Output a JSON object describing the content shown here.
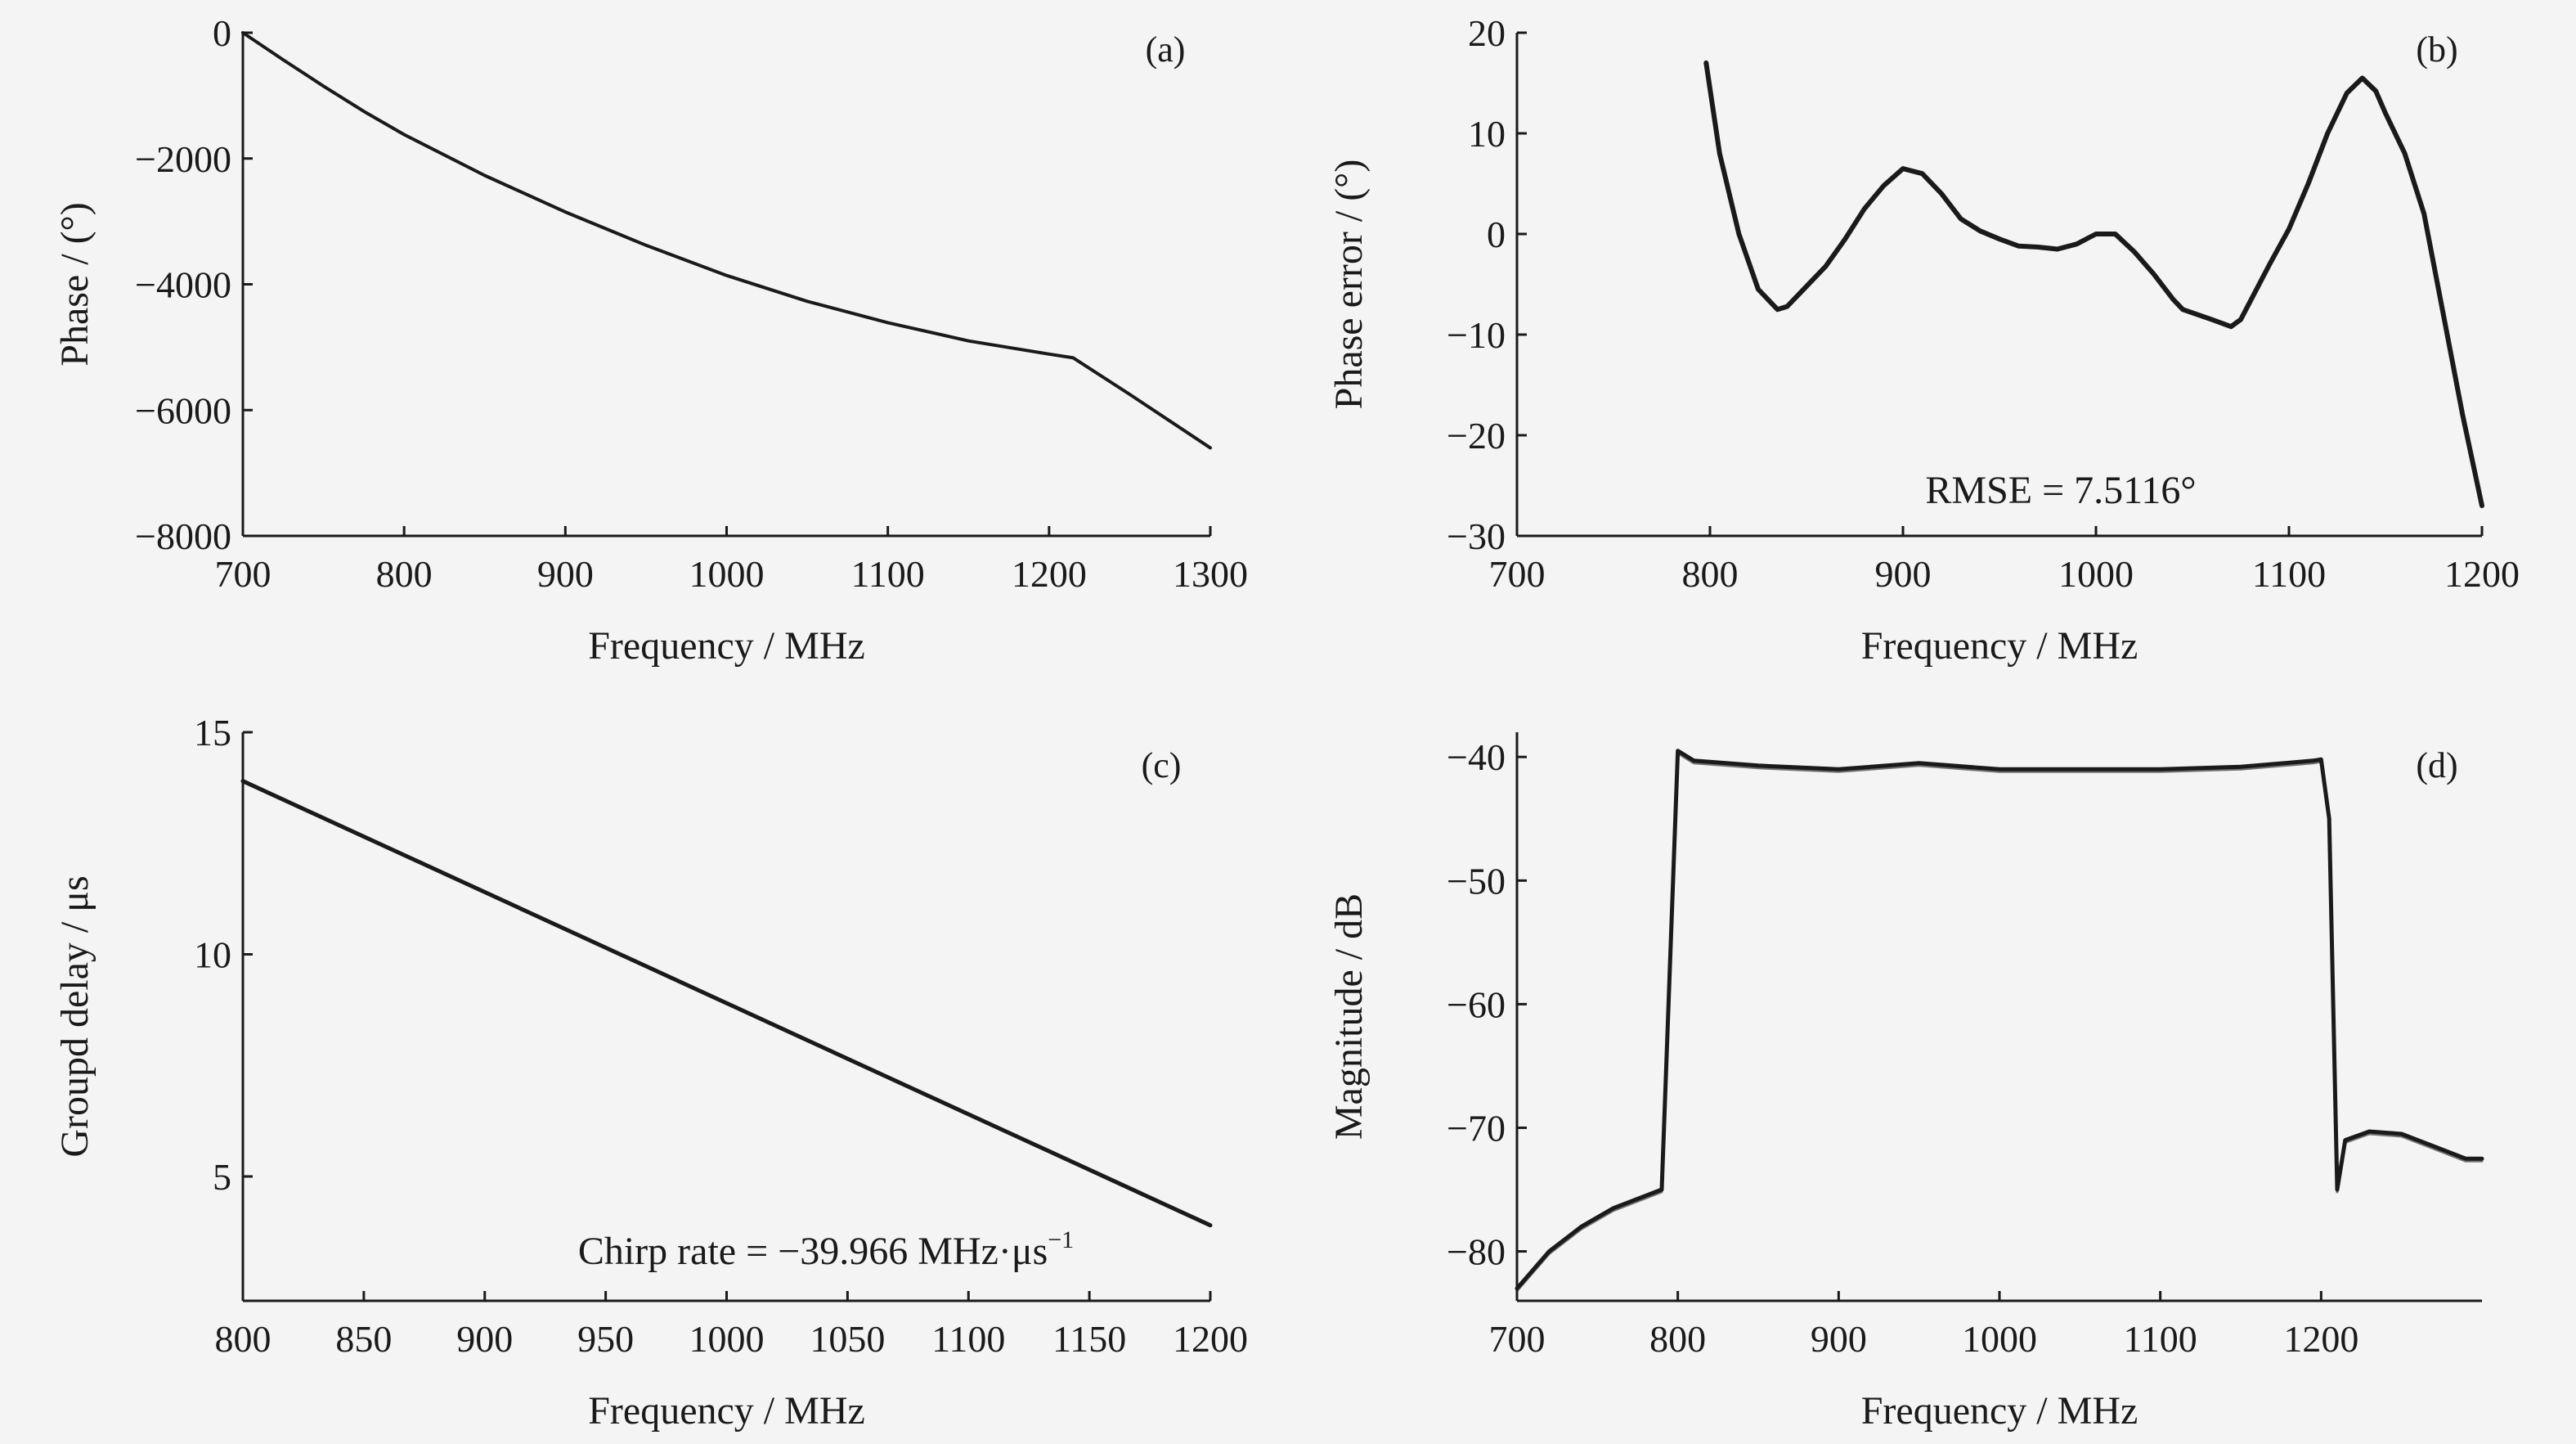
{
  "panels": [
    {
      "id": "a",
      "label": "(a)",
      "chart_data": {
        "type": "line",
        "xlabel": "Frequency / MHz",
        "ylabel": "Phase / (°)",
        "xlim": [
          700,
          1300
        ],
        "ylim": [
          -8000,
          0
        ],
        "xticks": [
          700,
          800,
          900,
          1000,
          1100,
          1200,
          1300
        ],
        "xtick_labels": [
          "700",
          "800",
          "900",
          "1000",
          "1100",
          "1200",
          "1300"
        ],
        "yticks": [
          0,
          -2000,
          -4000,
          -6000,
          -8000
        ],
        "ytick_labels": [
          "0",
          "−2000",
          "−4000",
          "−6000",
          "−8000"
        ],
        "grid": false,
        "series": [
          {
            "x": [
              700,
              725,
              750,
              775,
              800,
              850,
              900,
              950,
              1000,
              1050,
              1100,
              1150,
              1200,
              1215,
              1250,
              1300
            ],
            "y": [
              0,
              -430,
              -850,
              -1250,
              -1620,
              -2270,
              -2850,
              -3380,
              -3860,
              -4270,
              -4610,
              -4900,
              -5110,
              -5170,
              -5750,
              -6600
            ]
          }
        ]
      }
    },
    {
      "id": "b",
      "label": "(b)",
      "annotation": "RMSE = 7.5116°",
      "chart_data": {
        "type": "line",
        "xlabel": "Frequency / MHz",
        "ylabel": "Phase error / (°)",
        "xlim": [
          700,
          1200
        ],
        "ylim": [
          -30,
          20
        ],
        "xticks": [
          700,
          800,
          900,
          1000,
          1100,
          1200
        ],
        "xtick_labels": [
          "700",
          "800",
          "900",
          "1000",
          "1100",
          "1200"
        ],
        "yticks": [
          20,
          10,
          0,
          -10,
          -20,
          -30
        ],
        "ytick_labels": [
          "20",
          "10",
          "0",
          "−10",
          "−20",
          "−30"
        ],
        "grid": false,
        "series": [
          {
            "x": [
              798,
              805,
              815,
              825,
              835,
              840,
              850,
              860,
              870,
              880,
              890,
              900,
              910,
              920,
              930,
              940,
              950,
              960,
              970,
              980,
              990,
              1000,
              1010,
              1020,
              1030,
              1040,
              1045,
              1060,
              1070,
              1075,
              1090,
              1100,
              1110,
              1120,
              1130,
              1138,
              1145,
              1150,
              1160,
              1170,
              1180,
              1190,
              1200
            ],
            "y": [
              17,
              8,
              0,
              -5.5,
              -7.5,
              -7.2,
              -5.2,
              -3.2,
              -0.5,
              2.5,
              4.8,
              6.5,
              6,
              4,
              1.5,
              0.3,
              -0.5,
              -1.2,
              -1.3,
              -1.5,
              -1,
              0,
              0,
              -1.8,
              -4,
              -6.5,
              -7.5,
              -8.5,
              -9.2,
              -8.5,
              -3,
              0.5,
              5,
              10,
              14,
              15.5,
              14.2,
              12,
              8,
              2,
              -8,
              -18,
              -27
            ]
          }
        ]
      }
    },
    {
      "id": "c",
      "label": "(c)",
      "annotation": "Chirp rate = −39.966 MHz·μs",
      "annotation_sup": "−1",
      "chart_data": {
        "type": "line",
        "xlabel": "Frequency / MHz",
        "ylabel": "Groupd delay / μs",
        "xlim": [
          800,
          1200
        ],
        "ylim": [
          2.2,
          15
        ],
        "xticks": [
          800,
          850,
          900,
          950,
          1000,
          1050,
          1100,
          1150,
          1200
        ],
        "xtick_labels": [
          "800",
          "850",
          "900",
          "950",
          "1000",
          "1050",
          "1100",
          "1150",
          "1200"
        ],
        "yticks": [
          15,
          10,
          5
        ],
        "ytick_labels": [
          "15",
          "10",
          "5"
        ],
        "grid": false,
        "series": [
          {
            "x": [
              800,
              1200
            ],
            "y": [
              13.9,
              3.9
            ]
          }
        ]
      }
    },
    {
      "id": "d",
      "label": "(d)",
      "chart_data": {
        "type": "line",
        "xlabel": "Frequency / MHz",
        "ylabel": "Magnitude / dB",
        "xlim": [
          700,
          1300
        ],
        "ylim": [
          -84,
          -38
        ],
        "xticks": [
          700,
          800,
          900,
          1000,
          1100,
          1200
        ],
        "xtick_labels": [
          "700",
          "800",
          "900",
          "1000",
          "1100",
          "1200"
        ],
        "yticks": [
          -40,
          -50,
          -60,
          -70,
          -80
        ],
        "ytick_labels": [
          "−40",
          "−50",
          "−60",
          "−70",
          "−80"
        ],
        "grid": false,
        "series": [
          {
            "x": [
              700,
              720,
              740,
              760,
              780,
              790,
              800,
              810,
              850,
              900,
              950,
              1000,
              1050,
              1100,
              1150,
              1195,
              1200,
              1205,
              1210,
              1215,
              1230,
              1250,
              1270,
              1290,
              1300
            ],
            "y": [
              -83,
              -80,
              -78,
              -76.5,
              -75.5,
              -75,
              -39.5,
              -40.3,
              -40.7,
              -41,
              -40.5,
              -41,
              -41,
              -41,
              -40.8,
              -40.3,
              -40.2,
              -45,
              -75,
              -71,
              -70.3,
              -70.5,
              -71.5,
              -72.5,
              -72.5
            ]
          }
        ]
      }
    }
  ]
}
